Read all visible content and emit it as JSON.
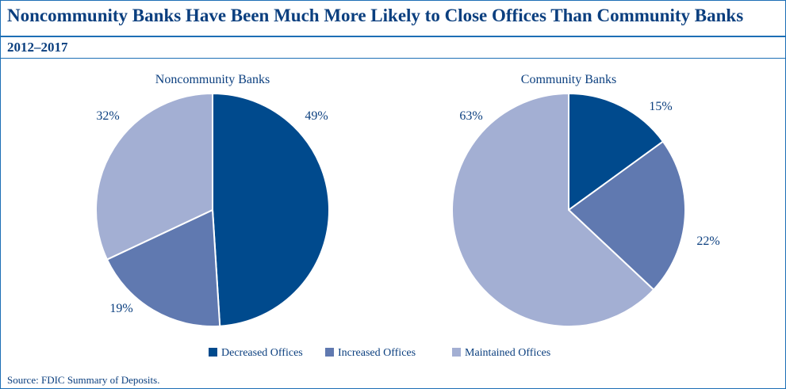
{
  "header": {
    "title": "Noncommunity Banks Have Been Much More Likely to Close Offices Than Community Banks",
    "subtitle": "2012–2017"
  },
  "source": "Source: FDIC Summary of Deposits.",
  "chart_data": [
    {
      "type": "pie",
      "title": "Noncommunity Banks",
      "categories": [
        "Decreased Offices",
        "Increased Offices",
        "Maintained Offices"
      ],
      "values": [
        49,
        19,
        32
      ],
      "labels": [
        "49%",
        "19%",
        "32%"
      ],
      "colors": [
        "#004a8d",
        "#6079b0",
        "#a3afd3"
      ],
      "legend": "bottom"
    },
    {
      "type": "pie",
      "title": "Community Banks",
      "categories": [
        "Decreased Offices",
        "Increased Offices",
        "Maintained Offices"
      ],
      "values": [
        15,
        22,
        63
      ],
      "labels": [
        "15%",
        "22%",
        "63%"
      ],
      "colors": [
        "#004a8d",
        "#6079b0",
        "#a3afd3"
      ],
      "legend": "bottom"
    }
  ]
}
